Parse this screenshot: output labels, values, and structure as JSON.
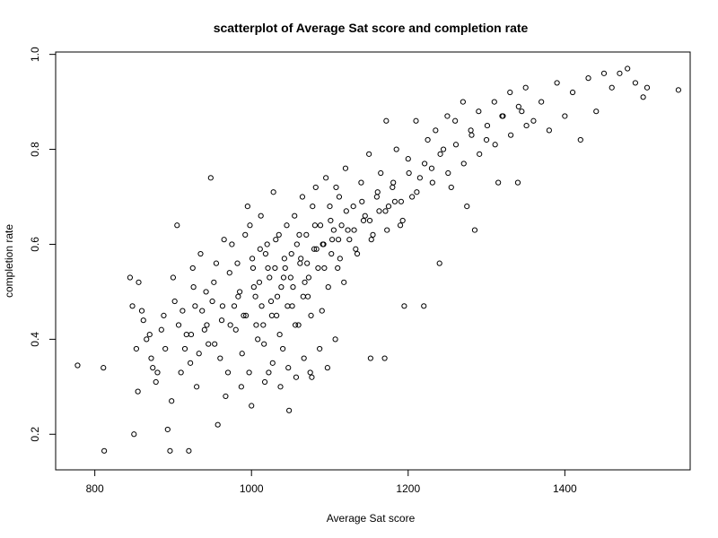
{
  "chart_data": {
    "type": "scatter",
    "title": "scatterplot of Average Sat score and completion rate",
    "xlabel": "Average Sat score",
    "ylabel": "completion rate",
    "xlim": [
      750,
      1560
    ],
    "ylim": [
      0.125,
      1.005
    ],
    "x_ticks": [
      800,
      1000,
      1200,
      1400
    ],
    "x_tick_labels": [
      "800",
      "1000",
      "1200",
      "1400"
    ],
    "y_ticks": [
      0.2,
      0.4,
      0.6,
      0.8,
      1.0
    ],
    "y_tick_labels": [
      "0.2",
      "0.4",
      "0.6",
      "0.8",
      "1.0"
    ],
    "grid": false,
    "point_style": "open-circle",
    "points": [
      [
        778,
        0.345
      ],
      [
        811,
        0.34
      ],
      [
        812,
        0.165
      ],
      [
        845,
        0.53
      ],
      [
        848,
        0.47
      ],
      [
        850,
        0.2
      ],
      [
        853,
        0.38
      ],
      [
        855,
        0.29
      ],
      [
        856,
        0.52
      ],
      [
        860,
        0.46
      ],
      [
        862,
        0.44
      ],
      [
        866,
        0.4
      ],
      [
        870,
        0.41
      ],
      [
        872,
        0.36
      ],
      [
        874,
        0.34
      ],
      [
        878,
        0.31
      ],
      [
        880,
        0.33
      ],
      [
        885,
        0.42
      ],
      [
        888,
        0.45
      ],
      [
        890,
        0.38
      ],
      [
        893,
        0.21
      ],
      [
        896,
        0.165
      ],
      [
        898,
        0.27
      ],
      [
        900,
        0.53
      ],
      [
        902,
        0.48
      ],
      [
        905,
        0.64
      ],
      [
        907,
        0.43
      ],
      [
        910,
        0.33
      ],
      [
        912,
        0.46
      ],
      [
        915,
        0.38
      ],
      [
        917,
        0.41
      ],
      [
        920,
        0.165
      ],
      [
        922,
        0.35
      ],
      [
        925,
        0.55
      ],
      [
        926,
        0.51
      ],
      [
        928,
        0.47
      ],
      [
        930,
        0.3
      ],
      [
        935,
        0.58
      ],
      [
        937,
        0.46
      ],
      [
        940,
        0.42
      ],
      [
        942,
        0.5
      ],
      [
        945,
        0.39
      ],
      [
        948,
        0.74
      ],
      [
        950,
        0.48
      ],
      [
        952,
        0.52
      ],
      [
        955,
        0.56
      ],
      [
        957,
        0.22
      ],
      [
        960,
        0.36
      ],
      [
        962,
        0.44
      ],
      [
        965,
        0.61
      ],
      [
        967,
        0.28
      ],
      [
        970,
        0.33
      ],
      [
        972,
        0.54
      ],
      [
        975,
        0.6
      ],
      [
        978,
        0.47
      ],
      [
        980,
        0.42
      ],
      [
        982,
        0.56
      ],
      [
        985,
        0.5
      ],
      [
        988,
        0.37
      ],
      [
        990,
        0.45
      ],
      [
        992,
        0.62
      ],
      [
        995,
        0.68
      ],
      [
        998,
        0.64
      ],
      [
        1000,
        0.26
      ],
      [
        1002,
        0.55
      ],
      [
        1005,
        0.49
      ],
      [
        1008,
        0.4
      ],
      [
        1010,
        0.52
      ],
      [
        1012,
        0.66
      ],
      [
        1015,
        0.43
      ],
      [
        1018,
        0.58
      ],
      [
        1020,
        0.6
      ],
      [
        1022,
        0.33
      ],
      [
        1025,
        0.48
      ],
      [
        1028,
        0.71
      ],
      [
        1030,
        0.55
      ],
      [
        1032,
        0.45
      ],
      [
        1035,
        0.62
      ],
      [
        1038,
        0.51
      ],
      [
        1040,
        0.38
      ],
      [
        1042,
        0.57
      ],
      [
        1045,
        0.64
      ],
      [
        1048,
        0.25
      ],
      [
        1050,
        0.53
      ],
      [
        1052,
        0.47
      ],
      [
        1055,
        0.66
      ],
      [
        1058,
        0.6
      ],
      [
        1060,
        0.43
      ],
      [
        1062,
        0.56
      ],
      [
        1065,
        0.7
      ],
      [
        1068,
        0.52
      ],
      [
        1070,
        0.62
      ],
      [
        1072,
        0.49
      ],
      [
        1075,
        0.33
      ],
      [
        1078,
        0.68
      ],
      [
        1080,
        0.59
      ],
      [
        1082,
        0.72
      ],
      [
        1085,
        0.55
      ],
      [
        1088,
        0.64
      ],
      [
        1090,
        0.46
      ],
      [
        1092,
        0.6
      ],
      [
        1095,
        0.74
      ],
      [
        1098,
        0.51
      ],
      [
        1100,
        0.68
      ],
      [
        1102,
        0.58
      ],
      [
        1105,
        0.63
      ],
      [
        1108,
        0.72
      ],
      [
        1110,
        0.55
      ],
      [
        1112,
        0.7
      ],
      [
        1115,
        0.64
      ],
      [
        1118,
        0.52
      ],
      [
        1120,
        0.76
      ],
      [
        1125,
        0.61
      ],
      [
        1130,
        0.68
      ],
      [
        1135,
        0.58
      ],
      [
        1140,
        0.73
      ],
      [
        1145,
        0.66
      ],
      [
        1150,
        0.79
      ],
      [
        1152,
        0.36
      ],
      [
        1155,
        0.62
      ],
      [
        1160,
        0.7
      ],
      [
        1165,
        0.75
      ],
      [
        1170,
        0.36
      ],
      [
        1172,
        0.86
      ],
      [
        1175,
        0.68
      ],
      [
        1180,
        0.72
      ],
      [
        1185,
        0.8
      ],
      [
        1190,
        0.64
      ],
      [
        1195,
        0.47
      ],
      [
        1200,
        0.78
      ],
      [
        1205,
        0.7
      ],
      [
        1210,
        0.86
      ],
      [
        1215,
        0.74
      ],
      [
        1220,
        0.47
      ],
      [
        1225,
        0.82
      ],
      [
        1230,
        0.76
      ],
      [
        1235,
        0.84
      ],
      [
        1240,
        0.56
      ],
      [
        1245,
        0.8
      ],
      [
        1250,
        0.87
      ],
      [
        1255,
        0.72
      ],
      [
        1260,
        0.86
      ],
      [
        1270,
        0.9
      ],
      [
        1275,
        0.68
      ],
      [
        1280,
        0.84
      ],
      [
        1285,
        0.63
      ],
      [
        1290,
        0.88
      ],
      [
        1300,
        0.82
      ],
      [
        1310,
        0.9
      ],
      [
        1315,
        0.73
      ],
      [
        1320,
        0.87
      ],
      [
        1330,
        0.92
      ],
      [
        1340,
        0.73
      ],
      [
        1345,
        0.88
      ],
      [
        1350,
        0.93
      ],
      [
        1360,
        0.86
      ],
      [
        1370,
        0.9
      ],
      [
        1380,
        0.84
      ],
      [
        1390,
        0.94
      ],
      [
        1400,
        0.87
      ],
      [
        1410,
        0.92
      ],
      [
        1420,
        0.82
      ],
      [
        1430,
        0.95
      ],
      [
        1440,
        0.88
      ],
      [
        1450,
        0.96
      ],
      [
        1460,
        0.93
      ],
      [
        1470,
        0.96
      ],
      [
        1480,
        0.97
      ],
      [
        1490,
        0.94
      ],
      [
        1500,
        0.91
      ],
      [
        1505,
        0.93
      ],
      [
        1545,
        0.925
      ],
      [
        1001,
        0.57
      ],
      [
        1011,
        0.59
      ],
      [
        1021,
        0.55
      ],
      [
        1031,
        0.61
      ],
      [
        1041,
        0.53
      ],
      [
        1051,
        0.58
      ],
      [
        1061,
        0.62
      ],
      [
        1071,
        0.56
      ],
      [
        1081,
        0.64
      ],
      [
        1091,
        0.6
      ],
      [
        1101,
        0.65
      ],
      [
        1111,
        0.61
      ],
      [
        1121,
        0.67
      ],
      [
        1131,
        0.63
      ],
      [
        1141,
        0.69
      ],
      [
        1151,
        0.65
      ],
      [
        1161,
        0.71
      ],
      [
        1171,
        0.67
      ],
      [
        1181,
        0.73
      ],
      [
        1191,
        0.69
      ],
      [
        1201,
        0.75
      ],
      [
        1211,
        0.71
      ],
      [
        1221,
        0.77
      ],
      [
        1231,
        0.73
      ],
      [
        1241,
        0.79
      ],
      [
        1251,
        0.75
      ],
      [
        1261,
        0.81
      ],
      [
        1271,
        0.77
      ],
      [
        1281,
        0.83
      ],
      [
        1291,
        0.79
      ],
      [
        1301,
        0.85
      ],
      [
        1311,
        0.81
      ],
      [
        1321,
        0.87
      ],
      [
        1331,
        0.83
      ],
      [
        1341,
        0.89
      ],
      [
        1351,
        0.85
      ],
      [
        963,
        0.47
      ],
      [
        973,
        0.43
      ],
      [
        983,
        0.49
      ],
      [
        993,
        0.45
      ],
      [
        1003,
        0.51
      ],
      [
        1013,
        0.47
      ],
      [
        1023,
        0.53
      ],
      [
        1033,
        0.49
      ],
      [
        1043,
        0.55
      ],
      [
        1053,
        0.51
      ],
      [
        1063,
        0.57
      ],
      [
        1073,
        0.53
      ],
      [
        1083,
        0.59
      ],
      [
        1093,
        0.55
      ],
      [
        1103,
        0.61
      ],
      [
        1113,
        0.57
      ],
      [
        1123,
        0.63
      ],
      [
        1133,
        0.59
      ],
      [
        1143,
        0.65
      ],
      [
        1153,
        0.61
      ],
      [
        1163,
        0.67
      ],
      [
        1173,
        0.63
      ],
      [
        1183,
        0.69
      ],
      [
        1193,
        0.65
      ],
      [
        923,
        0.41
      ],
      [
        933,
        0.37
      ],
      [
        943,
        0.43
      ],
      [
        953,
        0.39
      ],
      [
        1006,
        0.43
      ],
      [
        1016,
        0.39
      ],
      [
        1026,
        0.45
      ],
      [
        1036,
        0.41
      ],
      [
        1046,
        0.47
      ],
      [
        1056,
        0.43
      ],
      [
        1066,
        0.49
      ],
      [
        1076,
        0.45
      ],
      [
        987,
        0.3
      ],
      [
        997,
        0.33
      ],
      [
        1017,
        0.31
      ],
      [
        1027,
        0.35
      ],
      [
        1037,
        0.3
      ],
      [
        1047,
        0.34
      ],
      [
        1057,
        0.32
      ],
      [
        1067,
        0.36
      ],
      [
        1077,
        0.32
      ],
      [
        1087,
        0.38
      ],
      [
        1097,
        0.34
      ],
      [
        1107,
        0.4
      ]
    ]
  }
}
